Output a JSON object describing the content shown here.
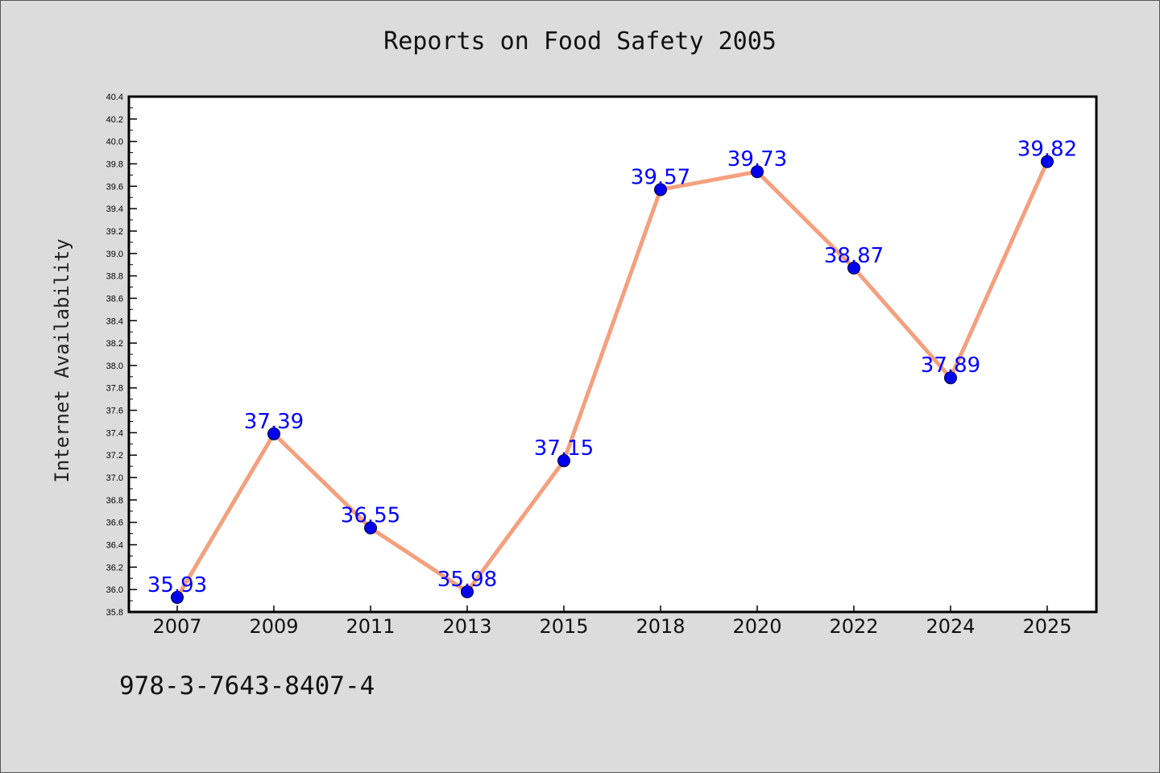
{
  "chart_data": {
    "type": "line",
    "title": "Reports on Food Safety 2005",
    "xlabel": "",
    "ylabel": "Internet Availability",
    "categories": [
      "2007",
      "2009",
      "2011",
      "2013",
      "2015",
      "2018",
      "2020",
      "2022",
      "2024",
      "2025"
    ],
    "values": [
      35.93,
      37.39,
      36.55,
      35.98,
      37.15,
      39.57,
      39.73,
      38.87,
      37.89,
      39.82
    ],
    "data_labels": [
      "35.93",
      "37.39",
      "36.55",
      "35.98",
      "37.15",
      "39.57",
      "39.73",
      "38.87",
      "37.89",
      "39.82"
    ],
    "ylim": [
      35.8,
      40.4
    ],
    "yticks": [
      "35.8",
      "36.0",
      "36.2",
      "36.4",
      "36.6",
      "36.8",
      "37.0",
      "37.2",
      "37.4",
      "37.6",
      "37.8",
      "38.0",
      "38.2",
      "38.4",
      "38.6",
      "38.8",
      "39.0",
      "39.2",
      "39.4",
      "39.6",
      "39.8",
      "40.0",
      "40.2",
      "40.4"
    ],
    "grid": false,
    "legend": "none",
    "line_color": "#f4a07e",
    "marker_color": "#0000ee",
    "label_color": "#0000ff"
  },
  "footer": {
    "code": "978-3-7643-8407-4"
  }
}
